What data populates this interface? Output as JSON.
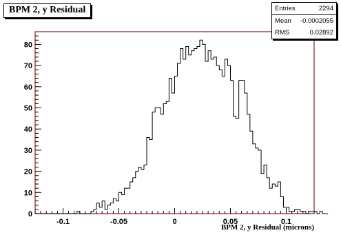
{
  "title": "BPM 2, y Residual",
  "stats": [
    {
      "label": "Entries",
      "value": "2294"
    },
    {
      "label": "Mean",
      "value": "-0.0002055"
    },
    {
      "label": "RMS",
      "value": "0.02892"
    }
  ],
  "colors": {
    "frame": "#8b1a1a",
    "line": "#000000",
    "background": "#ffffff"
  },
  "chart_data": {
    "type": "bar",
    "histogram_style": "step",
    "title": "BPM 2, y Residual",
    "xlabel": "BPM 2, y Residual (microns)",
    "ylabel": "",
    "xlim": [
      -0.125,
      0.125
    ],
    "ylim": [
      0,
      86
    ],
    "xticks": [
      -0.1,
      -0.05,
      0,
      0.05,
      0.1
    ],
    "xtick_labels": [
      "-0.1",
      "-0.05",
      "0",
      "0.05",
      "0.1"
    ],
    "yticks": [
      0,
      10,
      20,
      30,
      40,
      50,
      60,
      70,
      80
    ],
    "ytick_labels": [
      "0",
      "10",
      "20",
      "30",
      "40",
      "50",
      "60",
      "70",
      "80"
    ],
    "bin_width": 0.0025,
    "bin_edges_start": -0.125,
    "values": [
      0,
      0,
      0,
      0,
      0,
      0,
      0,
      0,
      0,
      0,
      0,
      0,
      0,
      0,
      0,
      1,
      0,
      0,
      0,
      0,
      1,
      2,
      5,
      3,
      6,
      2,
      4,
      5,
      7,
      6,
      10,
      9,
      12,
      12,
      15,
      17,
      20,
      22,
      21,
      23,
      36,
      35,
      48,
      50,
      50,
      47,
      52,
      53,
      64,
      57,
      65,
      71,
      78,
      73,
      79,
      75,
      77,
      78,
      79,
      82,
      80,
      72,
      77,
      73,
      74,
      70,
      68,
      65,
      73,
      70,
      63,
      46,
      45,
      63,
      63,
      57,
      47,
      39,
      33,
      31,
      30,
      19,
      23,
      17,
      12,
      14,
      13,
      15,
      8,
      3,
      3,
      1,
      1,
      2,
      2,
      1,
      1,
      0,
      1,
      1,
      1,
      0,
      1,
      0,
      0
    ]
  }
}
